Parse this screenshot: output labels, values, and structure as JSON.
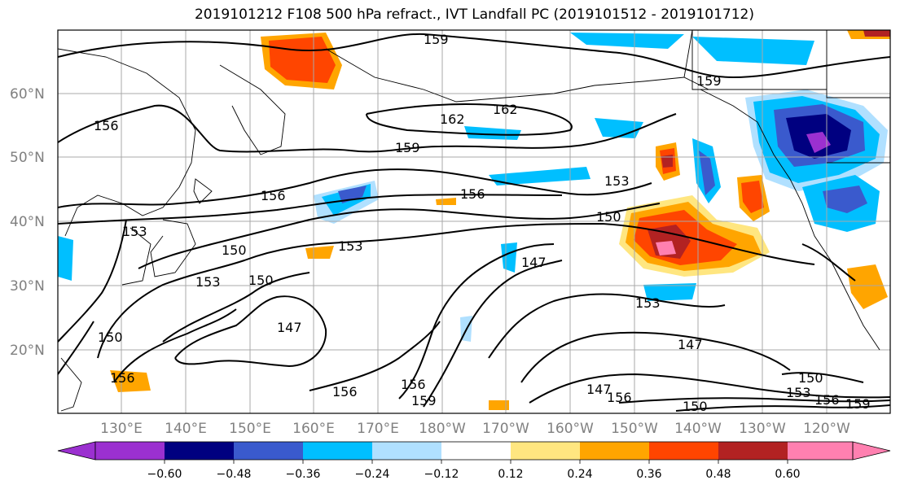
{
  "title": "2019101212 F108 500 hPa refract., IVT Landfall PC (2019101512 - 2019101712)",
  "map": {
    "lat_labels": [
      "60°N",
      "50°N",
      "40°N",
      "30°N",
      "20°N"
    ],
    "lon_labels": [
      "130°E",
      "140°E",
      "150°E",
      "160°E",
      "170°E",
      "180°W",
      "170°W",
      "160°W",
      "150°W",
      "140°W",
      "130°W",
      "120°W"
    ],
    "contour_labels": [
      "159",
      "159",
      "156",
      "162",
      "162",
      "159",
      "156",
      "156",
      "153",
      "150",
      "153",
      "150",
      "153",
      "150",
      "147",
      "147",
      "153",
      "147",
      "150",
      "153",
      "156",
      "156",
      "159",
      "150",
      "153",
      "156",
      "159",
      "156",
      "156",
      "147",
      "150"
    ],
    "shading_colors": {
      "neg_060_plus": "#9b30d0",
      "neg_048_060": "#000080",
      "neg_036_048": "#3a5acd",
      "neg_024_036": "#00bfff",
      "neg_012_024": "#b0e0ff",
      "pos_012_024": "#ffe680",
      "pos_024_036": "#ffa500",
      "pos_036_048": "#ff4500",
      "pos_048_060": "#b22222",
      "pos_060_plus": "#ff80b0"
    }
  },
  "colorbar": {
    "ticks": [
      "−0.60",
      "−0.48",
      "−0.36",
      "−0.24",
      "−0.12",
      "0.12",
      "0.24",
      "0.36",
      "0.48",
      "0.60"
    ],
    "colors": [
      "#9b30d0",
      "#000080",
      "#3a5acd",
      "#00bfff",
      "#b0e0ff",
      "#ffffff",
      "#ffe680",
      "#ffa500",
      "#ff4500",
      "#b22222",
      "#ff80b0"
    ]
  }
}
